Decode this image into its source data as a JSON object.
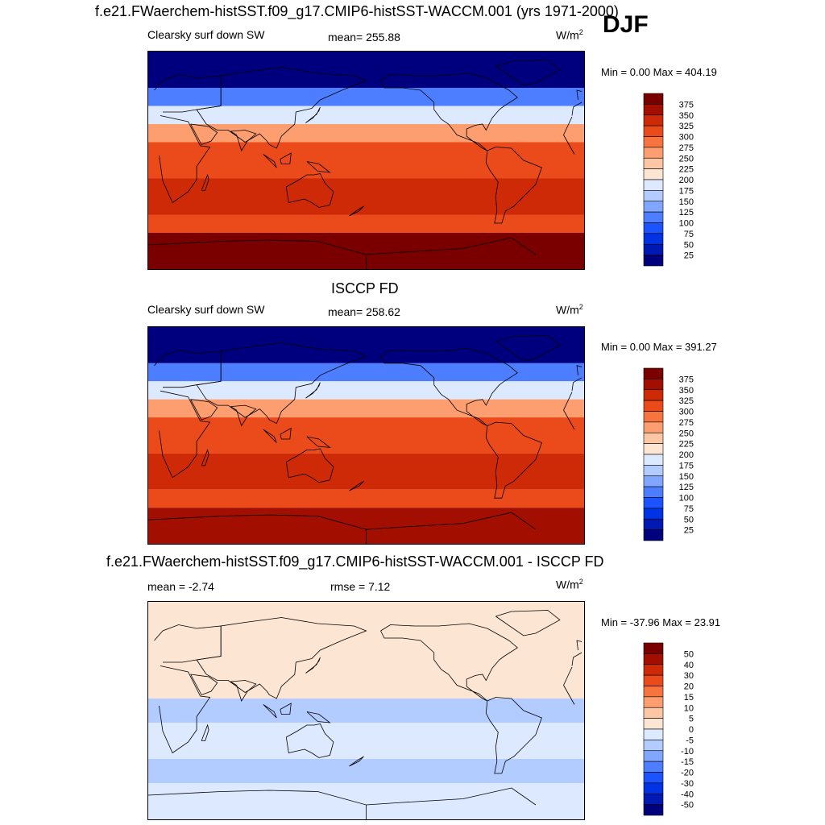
{
  "header": {
    "title": "f.e21.FWaerchem-histSST.f09_g17.CMIP6-histSST-WACCM.001 (yrs 1971-2000)",
    "season": "DJF"
  },
  "panels": [
    {
      "title": "",
      "variable": "Clearsky surf down SW",
      "stat_text": "mean= 255.88",
      "units": "W/m",
      "units_sup": "2",
      "minmax_text": "Min =   0.00 Max = 404.19"
    },
    {
      "title": "ISCCP FD",
      "variable": "Clearsky surf down SW",
      "stat_text": "mean= 258.62",
      "units": "W/m",
      "units_sup": "2",
      "minmax_text": "Min =   0.00 Max = 391.27"
    },
    {
      "title": "f.e21.FWaerchem-histSST.f09_g17.CMIP6-histSST-WACCM.001 - ISCCP FD",
      "variable": "mean =  -2.74",
      "stat_text": "rmse =   7.12",
      "units": "W/m",
      "units_sup": "2",
      "minmax_text": "Min = -37.96 Max =  23.91"
    }
  ],
  "chart_data": [
    {
      "type": "heatmap",
      "title": "f.e21.FWaerchem-histSST.f09_g17.CMIP6-histSST-WACCM.001 (yrs 1971-2000)",
      "variable": "Clearsky surf down SW",
      "units": "W/m2",
      "mean": 255.88,
      "min": 0.0,
      "max": 404.19,
      "zonal_bands_north_to_south": [
        {
          "lat": [
            90,
            60
          ],
          "level": "0-50"
        },
        {
          "lat": [
            60,
            45
          ],
          "level": "100-150"
        },
        {
          "lat": [
            45,
            30
          ],
          "level": "175-225"
        },
        {
          "lat": [
            30,
            15
          ],
          "level": "250-300"
        },
        {
          "lat": [
            15,
            -15
          ],
          "level": "300-325"
        },
        {
          "lat": [
            -15,
            -45
          ],
          "level": "325-350"
        },
        {
          "lat": [
            -45,
            -60
          ],
          "level": "300-325"
        },
        {
          "lat": [
            -60,
            -90
          ],
          "level": "375-400"
        }
      ],
      "colorbar": {
        "levels": [
          25,
          50,
          75,
          100,
          125,
          150,
          175,
          200,
          225,
          250,
          275,
          300,
          325,
          350,
          375
        ],
        "colors": [
          "#00007f",
          "#0019b3",
          "#0033e6",
          "#1a53ff",
          "#4d7eff",
          "#80a6ff",
          "#b3ccff",
          "#dde9ff",
          "#fde5d3",
          "#fdc6a4",
          "#fc9e70",
          "#f8743f",
          "#eb4a1a",
          "#cf2a08",
          "#a20e00",
          "#7a0000"
        ]
      }
    },
    {
      "type": "heatmap",
      "title": "ISCCP FD",
      "variable": "Clearsky surf down SW",
      "units": "W/m2",
      "mean": 258.62,
      "min": 0.0,
      "max": 391.27,
      "zonal_bands_north_to_south": [
        {
          "lat": [
            90,
            60
          ],
          "level": "0-50"
        },
        {
          "lat": [
            60,
            45
          ],
          "level": "100-150"
        },
        {
          "lat": [
            45,
            30
          ],
          "level": "175-225"
        },
        {
          "lat": [
            30,
            15
          ],
          "level": "250-300"
        },
        {
          "lat": [
            15,
            -15
          ],
          "level": "300-325"
        },
        {
          "lat": [
            -15,
            -45
          ],
          "level": "325-350"
        },
        {
          "lat": [
            -45,
            -60
          ],
          "level": "300-325"
        },
        {
          "lat": [
            -60,
            -90
          ],
          "level": "350-375"
        }
      ],
      "colorbar": {
        "levels": [
          25,
          50,
          75,
          100,
          125,
          150,
          175,
          200,
          225,
          250,
          275,
          300,
          325,
          350,
          375
        ],
        "colors": [
          "#00007f",
          "#0019b3",
          "#0033e6",
          "#1a53ff",
          "#4d7eff",
          "#80a6ff",
          "#b3ccff",
          "#dde9ff",
          "#fde5d3",
          "#fdc6a4",
          "#fc9e70",
          "#f8743f",
          "#eb4a1a",
          "#cf2a08",
          "#a20e00",
          "#7a0000"
        ]
      }
    },
    {
      "type": "heatmap",
      "title": "f.e21.FWaerchem-histSST.f09_g17.CMIP6-histSST-WACCM.001 - ISCCP FD",
      "variable": "difference",
      "units": "W/m2",
      "mean": -2.74,
      "rmse": 7.12,
      "min": -37.96,
      "max": 23.91,
      "zonal_bands_north_to_south": [
        {
          "lat": [
            90,
            30
          ],
          "level": "0-5"
        },
        {
          "lat": [
            30,
            10
          ],
          "level": "0-5"
        },
        {
          "lat": [
            10,
            -10
          ],
          "level": "-10 to -5"
        },
        {
          "lat": [
            -10,
            -40
          ],
          "level": "-5 to 0"
        },
        {
          "lat": [
            -40,
            -60
          ],
          "level": "-10 to -5"
        },
        {
          "lat": [
            -60,
            -90
          ],
          "level": "-5 to 0"
        }
      ],
      "colorbar": {
        "levels": [
          -50,
          -40,
          -30,
          -20,
          -15,
          -10,
          -5,
          0,
          5,
          10,
          15,
          20,
          30,
          40,
          50
        ],
        "colors": [
          "#00007f",
          "#0019b3",
          "#0033e6",
          "#1a53ff",
          "#4d7eff",
          "#80a6ff",
          "#b3ccff",
          "#dde9ff",
          "#fde5d3",
          "#fdc6a4",
          "#fc9e70",
          "#f8743f",
          "#eb4a1a",
          "#cf2a08",
          "#a20e00",
          "#7a0000"
        ]
      }
    }
  ]
}
